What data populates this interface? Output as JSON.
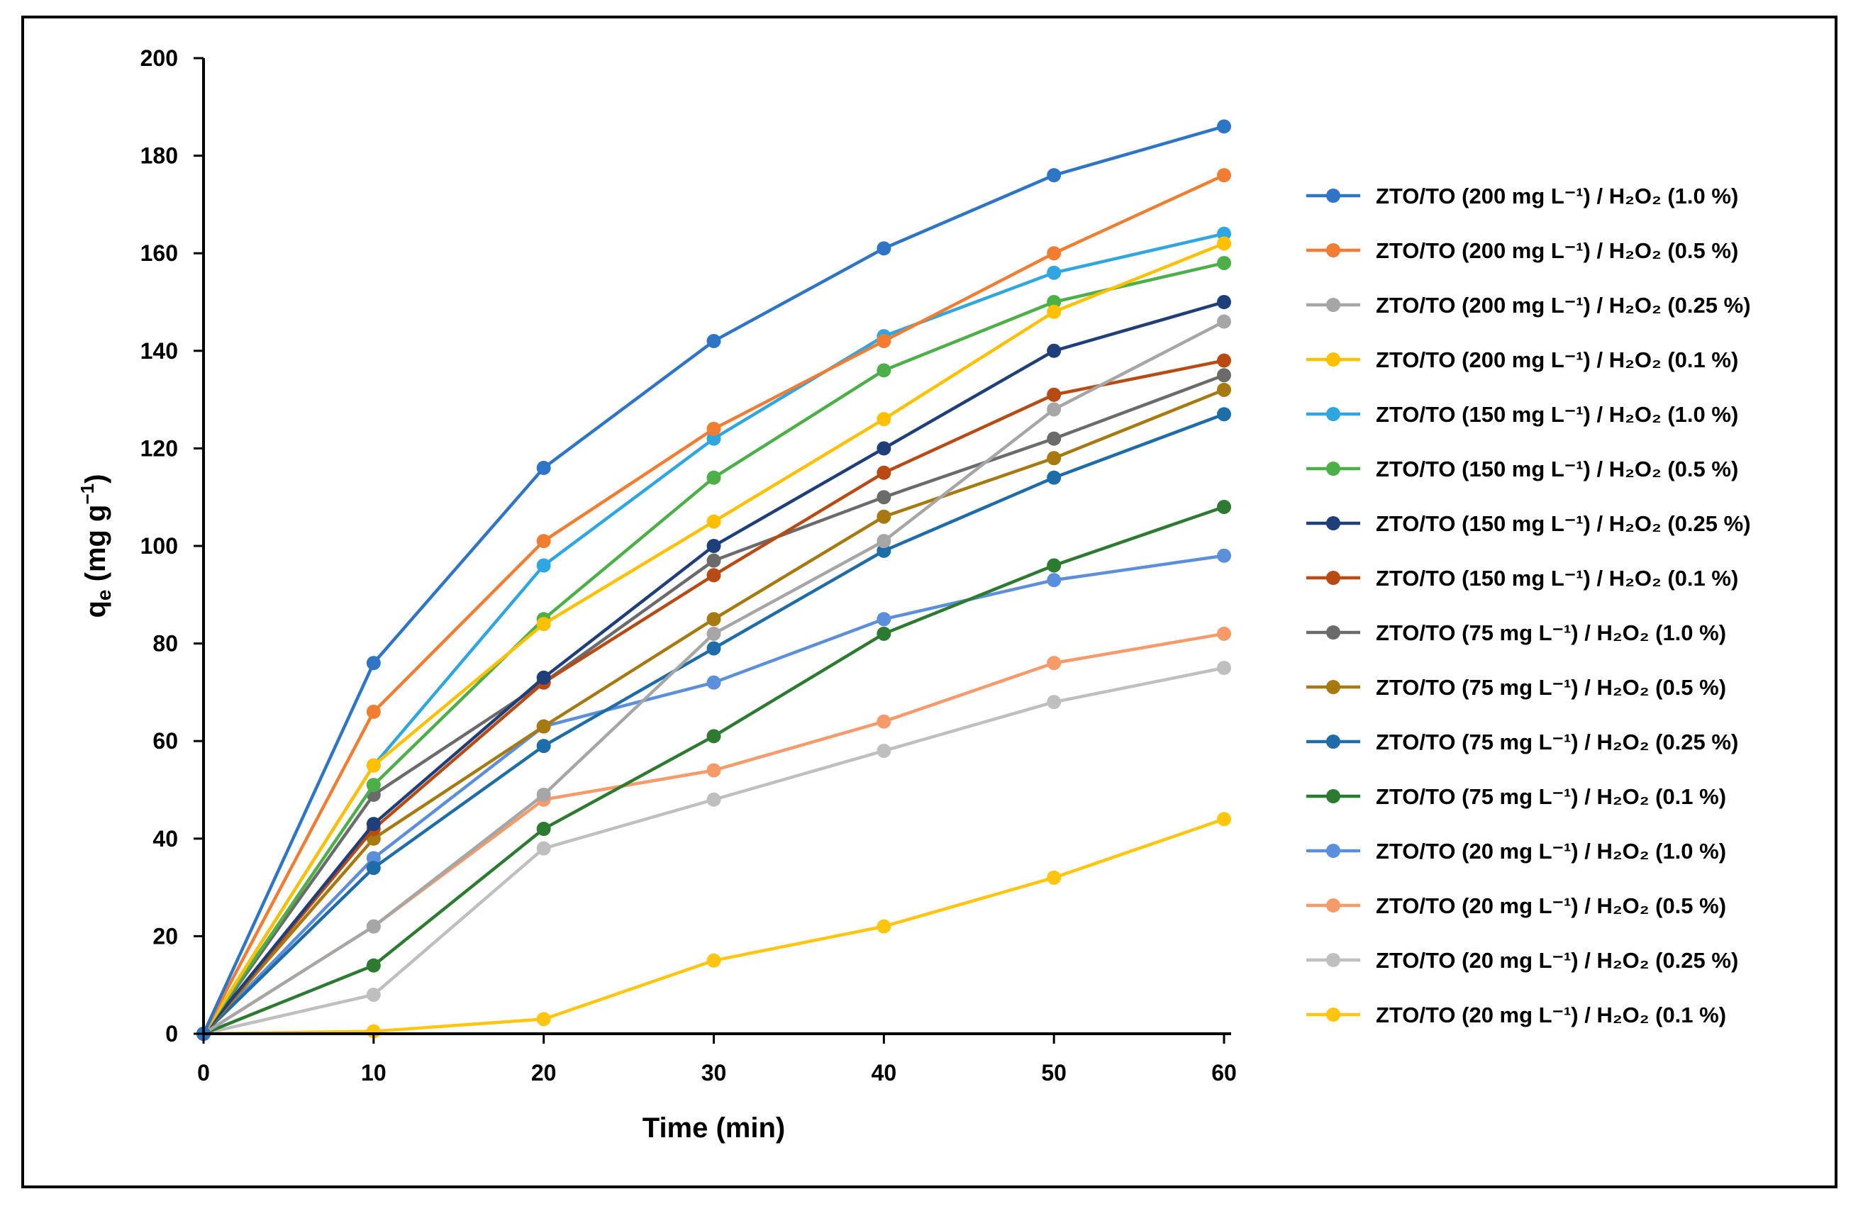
{
  "chart_data": {
    "type": "line",
    "title": "",
    "xlabel": "Time (min)",
    "ylabel": "qe (mg g⁻¹)",
    "ylabel_main": "q",
    "ylabel_sub": "e",
    "ylabel_unit": " (mg g",
    "ylabel_sup": "−1",
    "ylabel_close": ")",
    "xlim": [
      0,
      60
    ],
    "ylim": [
      0,
      200
    ],
    "x_ticks": [
      "0",
      "10",
      "20",
      "30",
      "40",
      "50",
      "60"
    ],
    "y_ticks": [
      "0",
      "20",
      "40",
      "60",
      "80",
      "100",
      "120",
      "140",
      "160",
      "180",
      "200"
    ],
    "grid": false,
    "legend_position": "right",
    "x": [
      0,
      10,
      20,
      30,
      40,
      50,
      60
    ],
    "series": [
      {
        "name": "ZTO/TO (200 mg L⁻¹) / H₂O₂ (1.0 %)",
        "color": "#2E75C8",
        "values": [
          0,
          76,
          116,
          142,
          161,
          176,
          186
        ]
      },
      {
        "name": "ZTO/TO (200 mg L⁻¹) / H₂O₂ (0.5 %)",
        "color": "#F07D32",
        "values": [
          0,
          66,
          101,
          124,
          142,
          160,
          176
        ]
      },
      {
        "name": "ZTO/TO (200 mg L⁻¹) / H₂O₂ (0.25 %)",
        "color": "#A6A6A6",
        "values": [
          0,
          22,
          49,
          82,
          101,
          128,
          146
        ]
      },
      {
        "name": "ZTO/TO (200 mg L⁻¹) / H₂O₂ (0.1 %)",
        "color": "#FFC000",
        "values": [
          0,
          55,
          84,
          105,
          126,
          148,
          162
        ]
      },
      {
        "name": "ZTO/TO (150 mg L⁻¹) / H₂O₂ (1.0 %)",
        "color": "#2FA6E0",
        "values": [
          0,
          55,
          96,
          122,
          143,
          156,
          164
        ]
      },
      {
        "name": "ZTO/TO (150 mg L⁻¹) / H₂O₂ (0.5 %)",
        "color": "#4CAF47",
        "values": [
          0,
          51,
          85,
          114,
          136,
          150,
          158
        ]
      },
      {
        "name": "ZTO/TO (150 mg L⁻¹) / H₂O₂ (0.25 %)",
        "color": "#1F3F7A",
        "values": [
          0,
          43,
          73,
          100,
          120,
          140,
          150
        ]
      },
      {
        "name": "ZTO/TO (150 mg L⁻¹) / H₂O₂ (0.1 %)",
        "color": "#B84A14",
        "values": [
          0,
          42,
          72,
          94,
          115,
          131,
          138
        ]
      },
      {
        "name": "ZTO/TO (75 mg L⁻¹) / H₂O₂ (1.0 %)",
        "color": "#6B6B6B",
        "values": [
          0,
          49,
          72,
          97,
          110,
          122,
          135
        ]
      },
      {
        "name": "ZTO/TO (75 mg L⁻¹) / H₂O₂ (0.5 %)",
        "color": "#A67A10",
        "values": [
          0,
          40,
          63,
          85,
          106,
          118,
          132
        ]
      },
      {
        "name": "ZTO/TO (75 mg L⁻¹) / H₂O₂ (0.25 %)",
        "color": "#1F6DA8",
        "values": [
          0,
          34,
          59,
          79,
          99,
          114,
          127
        ]
      },
      {
        "name": "ZTO/TO (75 mg L⁻¹) / H₂O₂ (0.1 %)",
        "color": "#2D7A31",
        "values": [
          0,
          14,
          42,
          61,
          82,
          96,
          108
        ]
      },
      {
        "name": "ZTO/TO (20 mg L⁻¹) / H₂O₂ (1.0 %)",
        "color": "#5B8FDB",
        "values": [
          0,
          36,
          63,
          72,
          85,
          93,
          98
        ]
      },
      {
        "name": "ZTO/TO (20 mg L⁻¹) / H₂O₂ (0.5 %)",
        "color": "#F79A6A",
        "values": [
          0,
          22,
          48,
          54,
          64,
          76,
          82
        ]
      },
      {
        "name": "ZTO/TO (20 mg L⁻¹) / H₂O₂ (0.25 %)",
        "color": "#BFBFBF",
        "values": [
          0,
          8,
          38,
          48,
          58,
          68,
          75
        ]
      },
      {
        "name": "ZTO/TO (20 mg L⁻¹) / H₂O₂ (0.1 %)",
        "color": "#FFC50F",
        "values": [
          0,
          0.5,
          3,
          15,
          22,
          32,
          44
        ]
      }
    ]
  }
}
